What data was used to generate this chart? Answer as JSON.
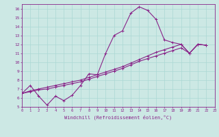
{
  "xlabel": "Windchill (Refroidissement éolien,°C)",
  "bg_color": "#cce8e4",
  "line_color": "#882288",
  "grid_color": "#aad8d4",
  "xlim": [
    0,
    23
  ],
  "ylim": [
    5,
    16.5
  ],
  "xticks": [
    0,
    1,
    2,
    3,
    4,
    5,
    6,
    7,
    8,
    9,
    10,
    11,
    12,
    13,
    14,
    15,
    16,
    17,
    18,
    19,
    20,
    21,
    22,
    23
  ],
  "yticks": [
    5,
    6,
    7,
    8,
    9,
    10,
    11,
    12,
    13,
    14,
    15,
    16
  ],
  "series_jagged": [
    6.5,
    7.4,
    6.2,
    5.2,
    6.2,
    5.7,
    6.3,
    7.4,
    8.7,
    8.6,
    11.0,
    13.0,
    13.5,
    15.5,
    16.2,
    15.8,
    14.8,
    12.5,
    12.2,
    12.0,
    11.0,
    12.0,
    11.9
  ],
  "series_line1": [
    6.5,
    6.8,
    7.0,
    7.2,
    7.4,
    7.6,
    7.8,
    8.0,
    8.3,
    8.6,
    8.9,
    9.2,
    9.5,
    9.9,
    10.3,
    10.7,
    11.1,
    11.4,
    11.7,
    12.0,
    11.0,
    12.0,
    11.9
  ],
  "series_line2": [
    6.5,
    6.7,
    6.9,
    7.0,
    7.2,
    7.4,
    7.6,
    7.8,
    8.1,
    8.4,
    8.7,
    9.0,
    9.3,
    9.7,
    10.1,
    10.4,
    10.7,
    11.0,
    11.3,
    11.6,
    11.0,
    12.0,
    11.9
  ]
}
